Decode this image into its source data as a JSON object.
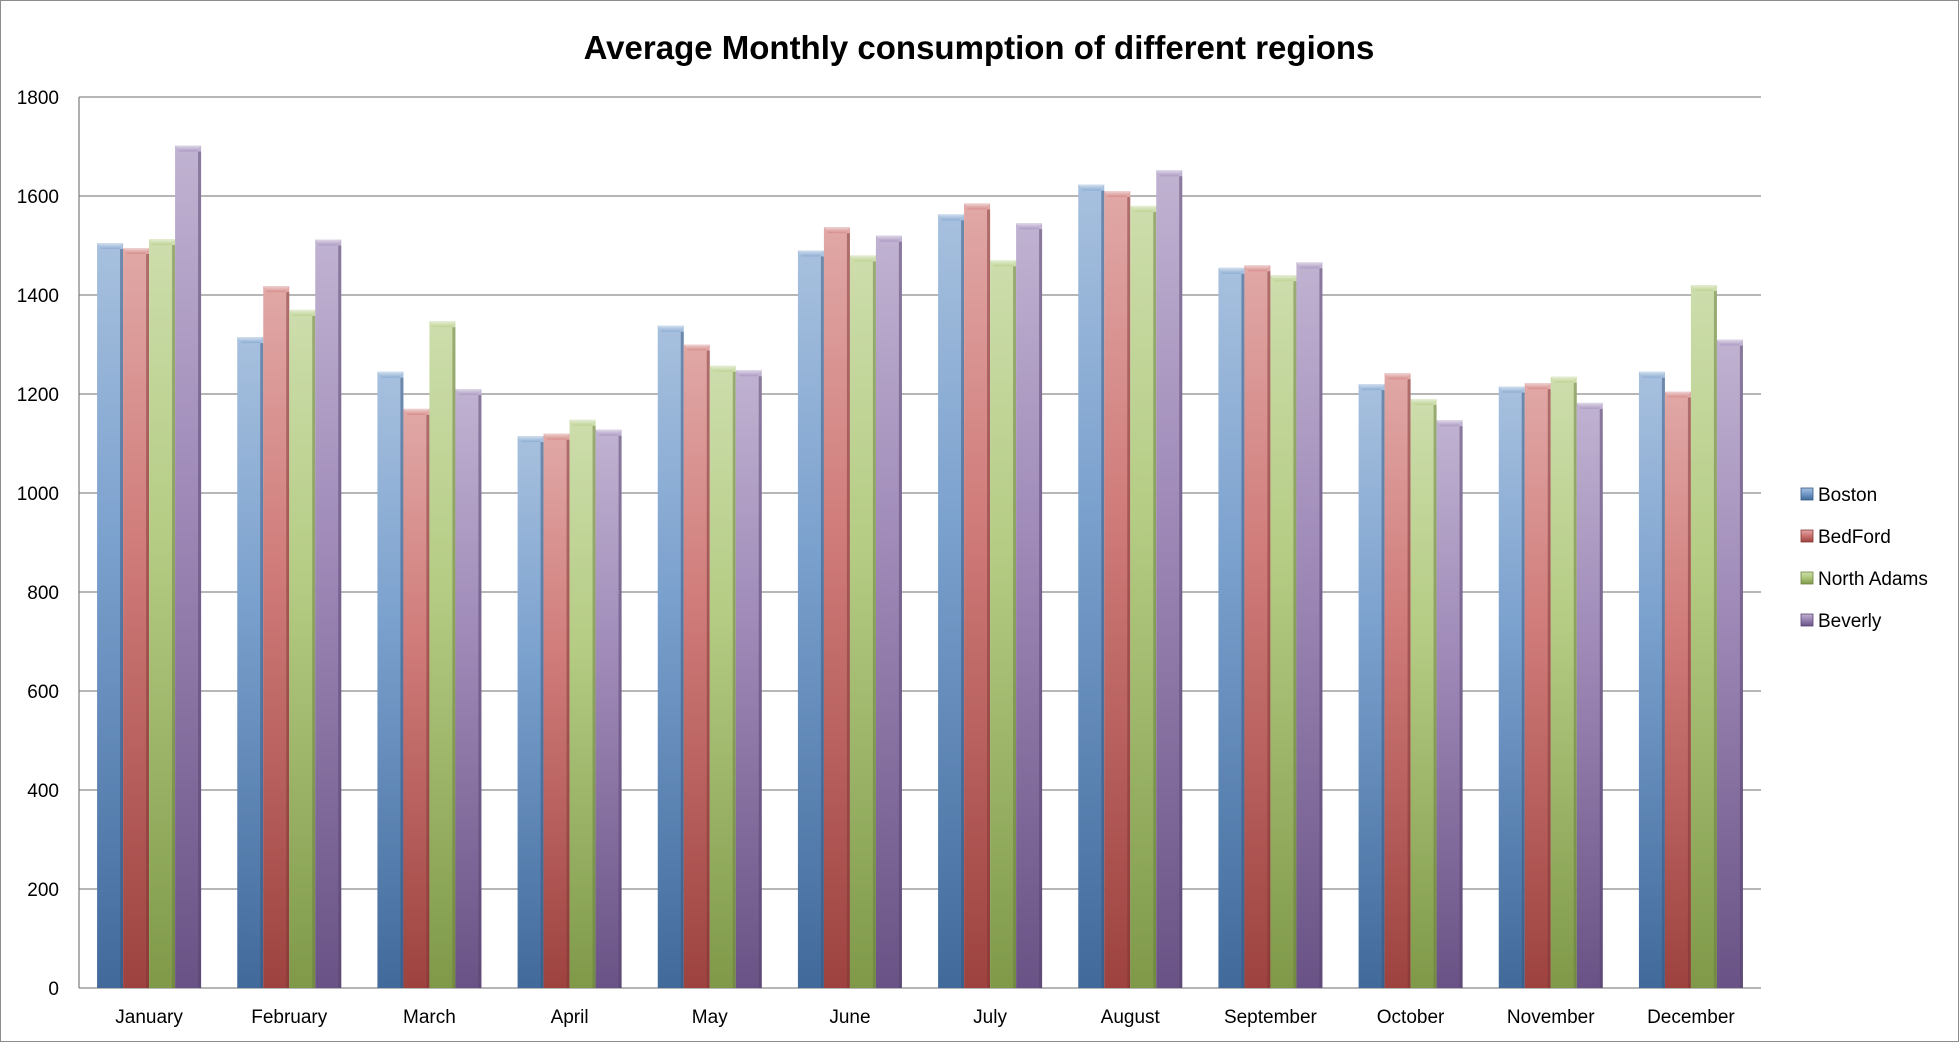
{
  "chart_data": {
    "type": "bar",
    "title": "Average Monthly consumption of different regions",
    "xlabel": "",
    "ylabel": "",
    "ylim": [
      0,
      1800
    ],
    "yticks": [
      0,
      200,
      400,
      600,
      800,
      1000,
      1200,
      1400,
      1600,
      1800
    ],
    "grid": true,
    "legend_position": "right",
    "categories": [
      "January",
      "February",
      "March",
      "April",
      "May",
      "June",
      "July",
      "August",
      "September",
      "October",
      "November",
      "December"
    ],
    "series": [
      {
        "name": "Boston",
        "color": "#4f81bd",
        "values": [
          1505,
          1315,
          1245,
          1115,
          1338,
          1490,
          1563,
          1623,
          1455,
          1220,
          1215,
          1245
        ]
      },
      {
        "name": "BedFord",
        "color": "#c0504d",
        "values": [
          1495,
          1418,
          1170,
          1120,
          1300,
          1537,
          1585,
          1610,
          1460,
          1242,
          1222,
          1205
        ]
      },
      {
        "name": "North Adams",
        "color": "#9bbb59",
        "values": [
          1513,
          1370,
          1347,
          1148,
          1257,
          1480,
          1470,
          1580,
          1440,
          1190,
          1235,
          1420
        ]
      },
      {
        "name": "Beverly",
        "color": "#8064a2",
        "values": [
          1702,
          1512,
          1210,
          1128,
          1248,
          1520,
          1545,
          1652,
          1466,
          1147,
          1182,
          1310
        ]
      }
    ]
  }
}
